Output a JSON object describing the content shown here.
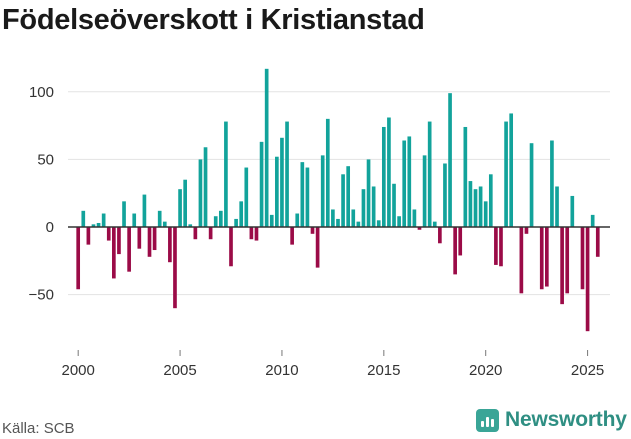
{
  "title": "Födelseöverskott i Kristianstad",
  "source": "Källa: SCB",
  "brand": "Newsworthy",
  "colors": {
    "positive": "#12a39b",
    "negative": "#9b0b47",
    "grid": "#e3e3e3",
    "zero": "#333333",
    "brand": "#2f8f83"
  },
  "chart_data": {
    "type": "bar",
    "title": "Födelseöverskott i Kristianstad",
    "xlabel": "",
    "ylabel": "",
    "ylim": [
      -85,
      125
    ],
    "yticks": [
      -50,
      0,
      50,
      100
    ],
    "xticks": [
      2000,
      2005,
      2010,
      2015,
      2020,
      2025
    ],
    "xlim": [
      1999.5,
      2026.1
    ],
    "interval": "month",
    "start": 2000.0,
    "step": 0.25,
    "values": [
      -46,
      12,
      -13,
      2,
      3,
      10,
      -10,
      -38,
      -20,
      19,
      -33,
      10,
      -16,
      24,
      -22,
      -17,
      12,
      4,
      -26,
      -60,
      28,
      35,
      2,
      -9,
      50,
      59,
      -9,
      8,
      12,
      78,
      -29,
      6,
      19,
      44,
      -9,
      -10,
      63,
      117,
      9,
      52,
      66,
      78,
      -13,
      10,
      48,
      44,
      -5,
      -30,
      53,
      80,
      13,
      6,
      39,
      45,
      13,
      4,
      28,
      50,
      30,
      5,
      74,
      81,
      32,
      8,
      64,
      67,
      13,
      -2,
      53,
      78,
      4,
      -12,
      47,
      99,
      -35,
      -21,
      74,
      34,
      28,
      30,
      19,
      39,
      -28,
      -29,
      78,
      84,
      0,
      -49,
      -5,
      62,
      0,
      -46,
      -44,
      64,
      30,
      -57,
      -49,
      23,
      0,
      -46,
      -77,
      9,
      -22
    ]
  }
}
